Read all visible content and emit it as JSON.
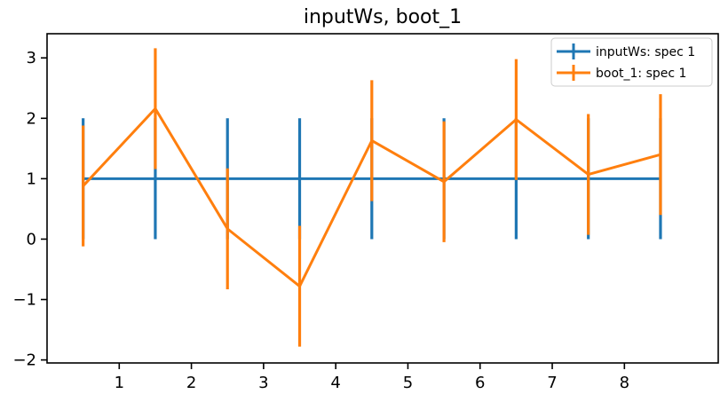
{
  "chart_data": {
    "type": "line",
    "title": "inputWs, boot_1",
    "xlabel": "",
    "ylabel": "",
    "xlim": [
      0.0,
      9.3
    ],
    "ylim": [
      -2.05,
      3.4
    ],
    "xticks": [
      1,
      2,
      3,
      4,
      5,
      6,
      7,
      8
    ],
    "yticks": [
      -2,
      -1,
      0,
      1,
      2,
      3
    ],
    "ytick_labels": [
      "−2",
      "−1",
      "0",
      "1",
      "2",
      "3"
    ],
    "grid": false,
    "legend_position": "top-right",
    "series": [
      {
        "name": "inputWs: spec 1",
        "color": "#1f77b4",
        "x": [
          0.5,
          1.5,
          2.5,
          3.5,
          4.5,
          5.5,
          6.5,
          7.5,
          8.5
        ],
        "y": [
          1,
          1,
          1,
          1,
          1,
          1,
          1,
          1,
          1
        ],
        "err": [
          1,
          1,
          1,
          1,
          1,
          1,
          1,
          1,
          1
        ]
      },
      {
        "name": "boot_1: spec 1",
        "color": "#ff7f0e",
        "x": [
          0.5,
          1.5,
          2.5,
          3.5,
          4.5,
          5.5,
          6.5,
          7.5,
          8.5
        ],
        "y": [
          0.88,
          2.16,
          0.17,
          -0.78,
          1.63,
          0.95,
          1.98,
          1.07,
          1.4
        ],
        "err": [
          1,
          1,
          1,
          1,
          1,
          1,
          1,
          1,
          1
        ]
      }
    ]
  }
}
